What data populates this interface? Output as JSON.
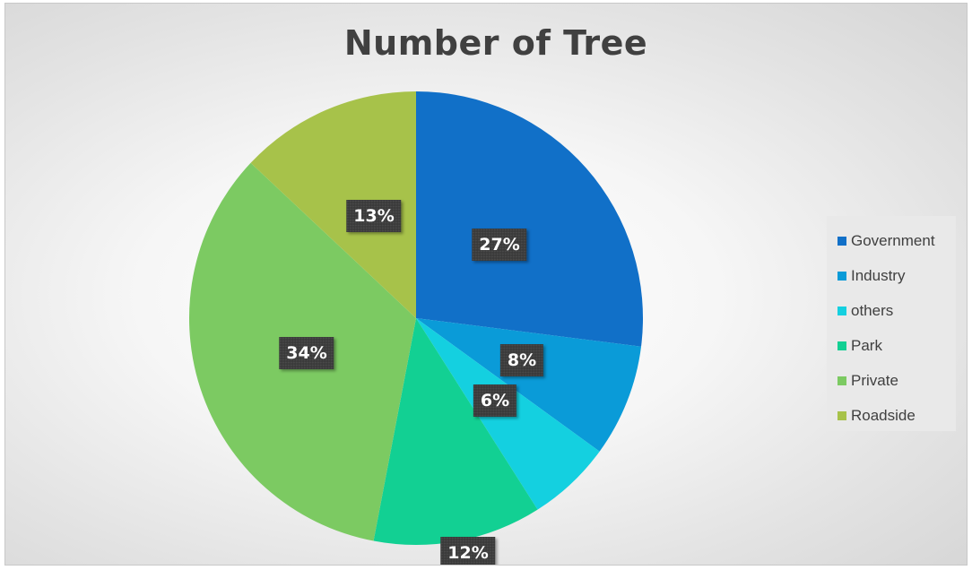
{
  "chart_data": {
    "type": "pie",
    "title": "Number of Tree",
    "slices": [
      {
        "name": "Government",
        "value": 27,
        "label": "27%",
        "color": "#1170c8"
      },
      {
        "name": "Industry",
        "value": 8,
        "label": "8%",
        "color": "#0a9bd8"
      },
      {
        "name": "others",
        "value": 6,
        "label": "6%",
        "color": "#14d0e0"
      },
      {
        "name": "Park",
        "value": 12,
        "label": "12%",
        "color": "#12d093"
      },
      {
        "name": "Private",
        "value": 34,
        "label": "34%",
        "color": "#7cca62"
      },
      {
        "name": "Roadside",
        "value": 13,
        "label": "13%",
        "color": "#a7c24a"
      }
    ],
    "legend_position": "right"
  }
}
